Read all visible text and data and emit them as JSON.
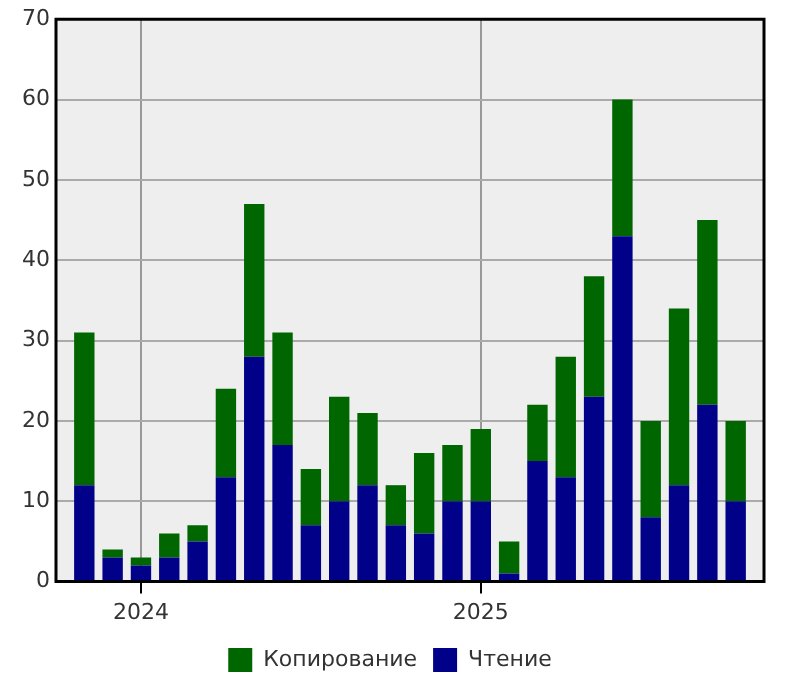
{
  "chart_data": {
    "type": "bar",
    "stacked": true,
    "x": [
      "2023-11",
      "2023-12",
      "2024-01",
      "2024-02",
      "2024-03",
      "2024-04",
      "2024-05",
      "2024-06",
      "2024-07",
      "2024-08",
      "2024-09",
      "2024-10",
      "2024-11",
      "2024-12",
      "2025-01",
      "2025-02",
      "2025-03",
      "2025-04",
      "2025-05",
      "2025-06",
      "2025-07",
      "2025-08",
      "2025-09",
      "2025-10"
    ],
    "series": [
      {
        "name": "Чтение",
        "color": "#000088",
        "values": [
          12,
          3,
          2,
          3,
          5,
          13,
          28,
          17,
          7,
          10,
          12,
          7,
          6,
          10,
          10,
          1,
          15,
          13,
          23,
          43,
          8,
          12,
          22,
          10
        ]
      },
      {
        "name": "Копирование",
        "color": "#006600",
        "values": [
          19,
          1,
          1,
          3,
          2,
          11,
          19,
          14,
          7,
          13,
          9,
          5,
          10,
          7,
          9,
          4,
          7,
          15,
          15,
          17,
          12,
          22,
          23,
          10
        ]
      }
    ],
    "xlim": [
      "2023-10",
      "2025-11"
    ],
    "xticks": [
      {
        "value": "2024-01",
        "label": "2024"
      },
      {
        "value": "2025-01",
        "label": "2025"
      }
    ],
    "ylim": [
      0,
      70
    ],
    "yticks": [
      0,
      10,
      20,
      30,
      40,
      50,
      60,
      70
    ],
    "grid": true,
    "legend": "bottom"
  }
}
